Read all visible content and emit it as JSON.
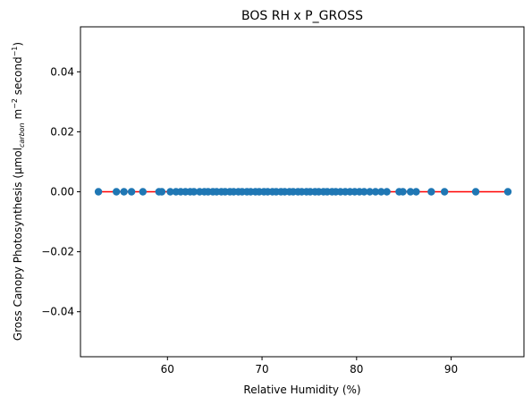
{
  "chart_data": {
    "type": "scatter",
    "title": "BOS RH x P_GROSS",
    "xlabel": "Relative Humidity (%)",
    "ylabel": {
      "prefix": "Gross Canopy Photosynthesis (μmol",
      "subscript": "carbon",
      "mid1": " m",
      "sup1": "−2",
      "mid2": " second",
      "sup2": "−1",
      "suffix": ")"
    },
    "xlim": [
      50.8,
      97.7
    ],
    "ylim": [
      -0.055,
      0.055
    ],
    "xticks": [
      60,
      70,
      80,
      90
    ],
    "yticks": [
      -0.04,
      -0.02,
      0.0,
      0.02,
      0.04
    ],
    "xtick_labels": [
      "60",
      "70",
      "80",
      "90"
    ],
    "ytick_labels": [
      "−0.04",
      "−0.02",
      "0.00",
      "0.02",
      "0.04"
    ],
    "grid": false,
    "series": [
      {
        "marker_color": "#1f77b4",
        "x": [
          52.7,
          54.6,
          55.4,
          56.2,
          57.4,
          59.1,
          59.4,
          60.3,
          60.9,
          61.4,
          61.9,
          62.4,
          62.8,
          63.4,
          63.9,
          64.3,
          64.8,
          65.2,
          65.7,
          66.1,
          66.6,
          67.0,
          67.5,
          67.9,
          68.4,
          68.8,
          69.3,
          69.7,
          70.2,
          70.6,
          71.1,
          71.5,
          72.0,
          72.4,
          72.9,
          73.3,
          73.8,
          74.2,
          74.7,
          75.1,
          75.6,
          76.0,
          76.5,
          76.9,
          77.4,
          77.8,
          78.3,
          78.8,
          79.3,
          79.8,
          80.3,
          80.8,
          81.4,
          82.0,
          82.6,
          83.2,
          84.5,
          84.9,
          85.7,
          86.3,
          87.9,
          89.3,
          92.6,
          96.0
        ],
        "y": [
          0,
          0,
          0,
          0,
          0,
          0,
          0,
          0,
          0,
          0,
          0,
          0,
          0,
          0,
          0,
          0,
          0,
          0,
          0,
          0,
          0,
          0,
          0,
          0,
          0,
          0,
          0,
          0,
          0,
          0,
          0,
          0,
          0,
          0,
          0,
          0,
          0,
          0,
          0,
          0,
          0,
          0,
          0,
          0,
          0,
          0,
          0,
          0,
          0,
          0,
          0,
          0,
          0,
          0,
          0,
          0,
          0,
          0,
          0,
          0,
          0,
          0,
          0,
          0
        ]
      }
    ],
    "fit_line": {
      "color": "#ff0000",
      "x": [
        52.7,
        96.0
      ],
      "y": [
        0,
        0
      ]
    }
  }
}
